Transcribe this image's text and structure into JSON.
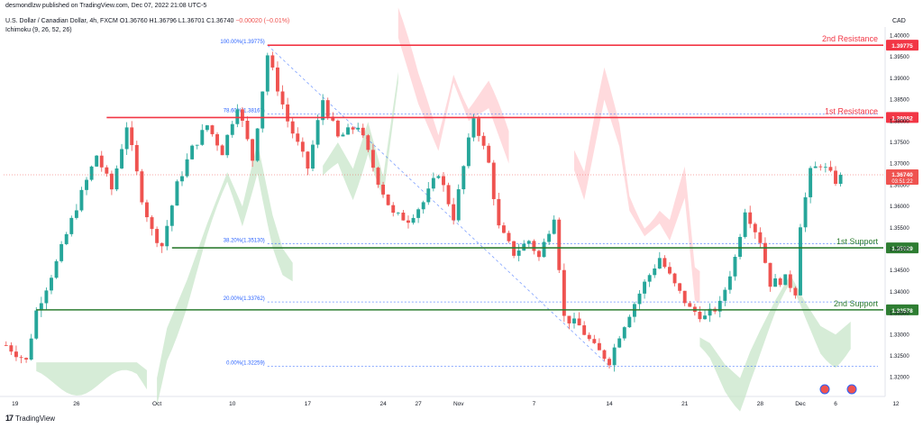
{
  "header": {
    "publisher_line": "desmondlzw published on TradingView.com, Dec 07, 2022 21:08 UTC-5",
    "symbol_line": "U.S. Dollar / Canadian Dollar, 4h, FXCM",
    "ohlc": {
      "o": "O1.36760",
      "h": "H1.36796",
      "l": "L1.36701",
      "c": "C1.36740",
      "change": "−0.00020 (−0.01%)"
    },
    "indicator_line": "Ichimoku (9, 26, 52, 26)"
  },
  "currency_label": "CAD",
  "footer": {
    "brand": "TradingView",
    "logo_mark": "17"
  },
  "colors": {
    "bull": "#26a69a",
    "bear": "#ef5350",
    "cloud_bull": "#c8e6c9",
    "cloud_bear": "#ffcdd2",
    "resistance": "#f23645",
    "support": "#2e7d32",
    "fib": "#2962ff"
  },
  "chart_data": {
    "type": "candlestick",
    "ylim": [
      1.3155,
      1.402
    ],
    "y_ticks": [
      "1.32000",
      "1.32500",
      "1.33000",
      "1.33500",
      "1.34000",
      "1.34500",
      "1.35000",
      "1.35500",
      "1.36000",
      "1.36500",
      "1.37000",
      "1.37500",
      "1.38000",
      "1.38500",
      "1.39000",
      "1.39500",
      "1.40000"
    ],
    "x_ticks": [
      "19",
      "26",
      "Oct",
      "10",
      "17",
      "24",
      "27",
      "Nov",
      "7",
      "14",
      "21",
      "28",
      "Dec",
      "6",
      "12"
    ],
    "price_path": [
      [
        0,
        1.3275
      ],
      [
        4,
        1.3238
      ],
      [
        6,
        1.3355
      ],
      [
        10,
        1.3468
      ],
      [
        14,
        1.36
      ],
      [
        18,
        1.372
      ],
      [
        21,
        1.364
      ],
      [
        24,
        1.379
      ],
      [
        27,
        1.362
      ],
      [
        29,
        1.3542
      ],
      [
        31,
        1.3508
      ],
      [
        34,
        1.365
      ],
      [
        37,
        1.3735
      ],
      [
        40,
        1.379
      ],
      [
        43,
        1.3728
      ],
      [
        46,
        1.3838
      ],
      [
        49,
        1.371
      ],
      [
        52,
        1.3955
      ],
      [
        56,
        1.38
      ],
      [
        60,
        1.369
      ],
      [
        63,
        1.385
      ],
      [
        66,
        1.376
      ],
      [
        70,
        1.379
      ],
      [
        74,
        1.366
      ],
      [
        77,
        1.358
      ],
      [
        80,
        1.357
      ],
      [
        83,
        1.361
      ],
      [
        86,
        1.368
      ],
      [
        89,
        1.3575
      ],
      [
        93,
        1.381
      ],
      [
        96,
        1.37
      ],
      [
        98,
        1.355
      ],
      [
        101,
        1.349
      ],
      [
        104,
        1.352
      ],
      [
        106,
        1.348
      ],
      [
        109,
        1.358
      ],
      [
        111,
        1.334
      ],
      [
        114,
        1.332
      ],
      [
        117,
        1.327
      ],
      [
        120,
        1.3238
      ],
      [
        122,
        1.33
      ],
      [
        124,
        1.335
      ],
      [
        127,
        1.342
      ],
      [
        130,
        1.348
      ],
      [
        133,
        1.3415
      ],
      [
        136,
        1.336
      ],
      [
        139,
        1.334
      ],
      [
        142,
        1.337
      ],
      [
        145,
        1.348
      ],
      [
        147,
        1.3595
      ],
      [
        150,
        1.352
      ],
      [
        152,
        1.342
      ],
      [
        155,
        1.343
      ],
      [
        157,
        1.34
      ],
      [
        158,
        1.356
      ],
      [
        160,
        1.368
      ],
      [
        162,
        1.37
      ],
      [
        165,
        1.366
      ],
      [
        166,
        1.3672
      ]
    ],
    "ichimoku_cloud": [
      {
        "from": 6,
        "to": 28,
        "bias": "bullish"
      },
      {
        "from": 30,
        "to": 57,
        "bias": "bullish"
      },
      {
        "from": 63,
        "to": 78,
        "bias": "bullish"
      },
      {
        "from": 78,
        "to": 100,
        "bias": "bearish"
      },
      {
        "from": 113,
        "to": 138,
        "bias": "bearish"
      },
      {
        "from": 138,
        "to": 168,
        "bias": "bullish"
      }
    ],
    "levels": [
      {
        "name": "2nd Resistance",
        "price": 1.39775,
        "label": "1.39775",
        "kind": "resistance"
      },
      {
        "name": "1st Resistance",
        "price": 1.38082,
        "label": "1.38082",
        "kind": "resistance"
      },
      {
        "name": "1st Support",
        "price": 1.35029,
        "label": "1.35029",
        "kind": "support"
      },
      {
        "name": "2nd Support",
        "price": 1.33578,
        "label": "1.33578",
        "kind": "support"
      }
    ],
    "fibonacci": [
      {
        "label": "100.00%(1.39775)",
        "price": 1.39775
      },
      {
        "label": "78.60%(1.38167)",
        "price": 1.38167
      },
      {
        "label": "38.20%(1.35130)",
        "price": 1.3513
      },
      {
        "label": "20.00%(1.33762)",
        "price": 1.33762
      },
      {
        "label": "0.00%(1.32259)",
        "price": 1.32259
      }
    ],
    "current_price": {
      "price": 1.3674,
      "label": "1.36740",
      "countdown": "03:51:22"
    }
  }
}
